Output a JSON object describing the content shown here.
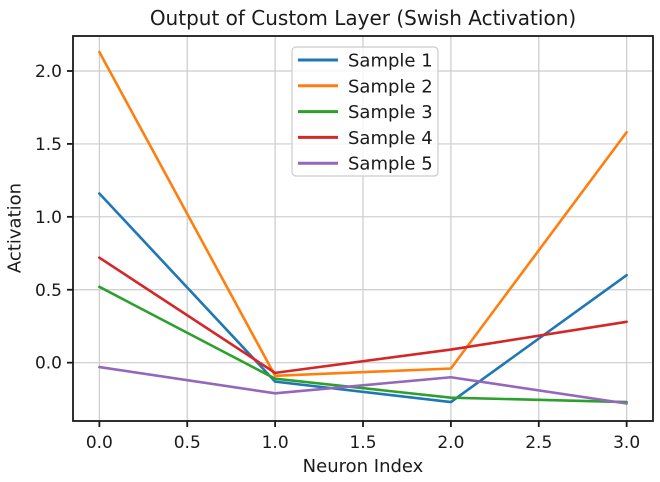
{
  "chart_data": {
    "type": "line",
    "title": "Output of Custom Layer (Swish Activation)",
    "xlabel": "Neuron Index",
    "ylabel": "Activation",
    "x": [
      0,
      1,
      2,
      3
    ],
    "series": [
      {
        "name": "Sample 1",
        "color": "#1f77b4",
        "values": [
          1.16,
          -0.13,
          -0.27,
          0.6
        ]
      },
      {
        "name": "Sample 2",
        "color": "#ff7f0e",
        "values": [
          2.13,
          -0.09,
          -0.04,
          1.58
        ]
      },
      {
        "name": "Sample 3",
        "color": "#2ca02c",
        "values": [
          0.52,
          -0.11,
          -0.24,
          -0.27
        ]
      },
      {
        "name": "Sample 4",
        "color": "#d62728",
        "values": [
          0.72,
          -0.07,
          0.09,
          0.28
        ]
      },
      {
        "name": "Sample 5",
        "color": "#9467bd",
        "values": [
          -0.03,
          -0.21,
          -0.1,
          -0.28
        ]
      }
    ],
    "xlim": [
      -0.15,
      3.15
    ],
    "ylim": [
      -0.4,
      2.24
    ],
    "xticks": [
      0.0,
      0.5,
      1.0,
      1.5,
      2.0,
      2.5,
      3.0
    ],
    "yticks": [
      0.0,
      0.5,
      1.0,
      1.5,
      2.0
    ],
    "tick_decimals": 1,
    "grid": true,
    "legend_position": "upper center",
    "colors": {
      "background": "#ffffff",
      "grid": "#cccccc",
      "spine": "#1a1a1a",
      "text": "#1a1a1a",
      "legend_border": "#cccccc",
      "legend_fill": "rgba(255,255,255,0.8)"
    }
  }
}
